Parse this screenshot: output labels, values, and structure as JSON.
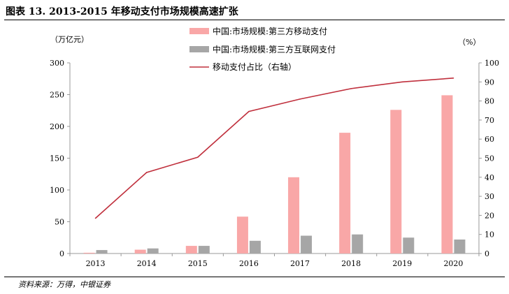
{
  "figure": {
    "title": "图表 13. 2013-2015 年移动支付市场规模高速扩张",
    "source": "资料来源：万得，中银证券"
  },
  "colors": {
    "mobile_bar": "#f9a7a7",
    "internet_bar": "#a6a6a6",
    "line": "#c0303d",
    "axis": "#999999"
  },
  "chart_data": {
    "type": "bar",
    "categories": [
      "2013",
      "2014",
      "2015",
      "2016",
      "2017",
      "2018",
      "2019",
      "2020"
    ],
    "series": [
      {
        "name": "中国:市场规模:第三方移动支付",
        "type": "bar",
        "axis": "left",
        "values": [
          1.2,
          6,
          12,
          58,
          120,
          190,
          226,
          249
        ]
      },
      {
        "name": "中国:市场规模:第三方互联网支付",
        "type": "bar",
        "axis": "left",
        "values": [
          5.4,
          8,
          12,
          20,
          28,
          30,
          25,
          22
        ]
      },
      {
        "name": "移动支付占比（右轴）",
        "type": "line",
        "axis": "right",
        "values": [
          18.5,
          42.5,
          50.5,
          74.5,
          81,
          86.5,
          90,
          92
        ]
      }
    ],
    "left_axis": {
      "unit_label": "（万亿元）",
      "ylim": [
        0,
        300
      ],
      "ticks": [
        0,
        50,
        100,
        150,
        200,
        250,
        300
      ]
    },
    "right_axis": {
      "unit_label": "（%）",
      "ylim": [
        0,
        100
      ],
      "ticks": [
        0,
        10,
        20,
        30,
        40,
        50,
        60,
        70,
        80,
        90,
        100
      ]
    },
    "legend_position": "top-center",
    "grid": false
  }
}
